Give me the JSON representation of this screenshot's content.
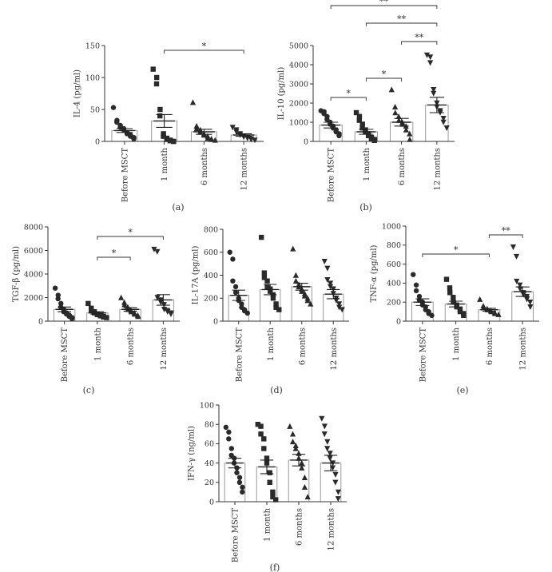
{
  "chart_data": [
    {
      "type": "scatter",
      "panel_label": "(a)",
      "categories": [
        "Before MSCT",
        "1 month",
        "6 months",
        "12 months"
      ],
      "ylabel": "IL-4 (pg/ml)",
      "ylim": [
        0,
        150
      ],
      "yticks": [
        0,
        50,
        100,
        150
      ],
      "bar_means": [
        17,
        32,
        15,
        10
      ],
      "sem": [
        3,
        10,
        4,
        2
      ],
      "points": [
        [
          53,
          33,
          30,
          25,
          22,
          20,
          18,
          14,
          12,
          10,
          8,
          6,
          4
        ],
        [
          113,
          100,
          90,
          50,
          40,
          12,
          8,
          5,
          3,
          2,
          1,
          0,
          0
        ],
        [
          61,
          24,
          20,
          18,
          15,
          12,
          10,
          8,
          5,
          4,
          3,
          2
        ],
        [
          22,
          18,
          15,
          12,
          10,
          8,
          7,
          6,
          5,
          4,
          3,
          2
        ]
      ],
      "markers": [
        "circle",
        "square",
        "triangle",
        "triangle-down"
      ],
      "significance": [
        {
          "from": 1,
          "to": 3,
          "label": "*"
        }
      ]
    },
    {
      "type": "scatter",
      "panel_label": "(b)",
      "categories": [
        "Before MSCT",
        "1 month",
        "6 months",
        "12 months"
      ],
      "ylabel": "IL-10 (pg/ml)",
      "ylim": [
        0,
        5000
      ],
      "yticks": [
        0,
        1000,
        2000,
        3000,
        4000,
        5000
      ],
      "bar_means": [
        850,
        500,
        1000,
        1900
      ],
      "sem": [
        150,
        130,
        200,
        400
      ],
      "points": [
        [
          1600,
          1550,
          1450,
          1300,
          1150,
          1000,
          900,
          800,
          700,
          600,
          500,
          400,
          300
        ],
        [
          1500,
          1300,
          1100,
          900,
          700,
          600,
          500,
          400,
          300,
          200,
          150,
          100,
          50
        ],
        [
          2700,
          1800,
          1500,
          1300,
          1100,
          1000,
          900,
          800,
          600,
          400,
          100
        ],
        [
          4500,
          4400,
          4100,
          2700,
          2500,
          2000,
          1800,
          1600,
          1500,
          1200,
          1000,
          700
        ]
      ],
      "markers": [
        "circle",
        "square",
        "triangle",
        "triangle-down"
      ],
      "significance": [
        {
          "from": 0,
          "to": 1,
          "label": "*"
        },
        {
          "from": 1,
          "to": 2,
          "label": "*"
        },
        {
          "from": 2,
          "to": 3,
          "label": "**"
        },
        {
          "from": 1,
          "to": 3,
          "label": "**"
        },
        {
          "from": 0,
          "to": 3,
          "label": "**"
        }
      ]
    },
    {
      "type": "scatter",
      "panel_label": "(c)",
      "categories": [
        "Before MSCT",
        "1 month",
        "6 months",
        "12 months"
      ],
      "ylabel": "TGF-β (pg/ml)",
      "ylim": [
        0,
        8000
      ],
      "yticks": [
        0,
        2000,
        4000,
        6000,
        8000
      ],
      "bar_means": [
        1000,
        700,
        1000,
        1800
      ],
      "sem": [
        200,
        100,
        150,
        450
      ],
      "points": [
        [
          2800,
          2200,
          1900,
          1500,
          1200,
          1000,
          800,
          700,
          600,
          500,
          400,
          300,
          200
        ],
        [
          1500,
          1100,
          900,
          800,
          700,
          600,
          550,
          500,
          450,
          400,
          350,
          300
        ],
        [
          2000,
          1600,
          1400,
          1200,
          1000,
          900,
          800,
          700,
          600,
          500,
          400
        ],
        [
          6100,
          5900,
          2000,
          1800,
          1600,
          1400,
          1000,
          900,
          800,
          700,
          600
        ]
      ],
      "markers": [
        "circle",
        "square",
        "triangle",
        "triangle-down"
      ],
      "significance": [
        {
          "from": 1,
          "to": 2,
          "label": "*"
        },
        {
          "from": 1,
          "to": 3,
          "label": "*"
        }
      ]
    },
    {
      "type": "scatter",
      "panel_label": "(d)",
      "categories": [
        "Before MSCT",
        "1 month",
        "6 months",
        "12 months"
      ],
      "ylabel": "IL-17A (pg/ml)",
      "ylim": [
        0,
        800
      ],
      "yticks": [
        0,
        200,
        400,
        600,
        800
      ],
      "bar_means": [
        225,
        275,
        300,
        235
      ],
      "sem": [
        45,
        45,
        30,
        40
      ],
      "points": [
        [
          600,
          540,
          350,
          300,
          250,
          200,
          180,
          150,
          120,
          100,
          90,
          70
        ],
        [
          730,
          420,
          380,
          350,
          300,
          280,
          260,
          230,
          200,
          150,
          120,
          100
        ],
        [
          630,
          400,
          350,
          320,
          300,
          280,
          260,
          240,
          220,
          200,
          180,
          150
        ],
        [
          520,
          460,
          360,
          330,
          300,
          280,
          240,
          200,
          180,
          150,
          120,
          100
        ]
      ],
      "markers": [
        "circle",
        "square",
        "triangle",
        "triangle-down"
      ],
      "significance": []
    },
    {
      "type": "scatter",
      "panel_label": "(e)",
      "categories": [
        "Before MSCT",
        "1 month",
        "6 months",
        "12 months"
      ],
      "ylabel": "TNF-α (pg/ml)",
      "ylim": [
        0,
        1000
      ],
      "yticks": [
        0,
        200,
        400,
        600,
        800,
        1000
      ],
      "bar_means": [
        200,
        180,
        120,
        310
      ],
      "sem": [
        35,
        30,
        15,
        50
      ],
      "points": [
        [
          490,
          380,
          320,
          260,
          220,
          200,
          170,
          150,
          120,
          100,
          80,
          60
        ],
        [
          440,
          350,
          300,
          250,
          200,
          170,
          150,
          120,
          100,
          80,
          60
        ],
        [
          230,
          160,
          140,
          130,
          120,
          110,
          100,
          90,
          80,
          70
        ],
        [
          780,
          680,
          420,
          380,
          340,
          300,
          280,
          260,
          230,
          200,
          150
        ]
      ],
      "markers": [
        "circle",
        "square",
        "triangle",
        "triangle-down"
      ],
      "significance": [
        {
          "from": 0,
          "to": 2,
          "label": "*"
        },
        {
          "from": 2,
          "to": 3,
          "label": "**"
        }
      ]
    },
    {
      "type": "scatter",
      "panel_label": "(f)",
      "categories": [
        "Before MSCT",
        "1 month",
        "6 months",
        "12 months"
      ],
      "ylabel": "IFN-γ (ng/ml)",
      "ylim": [
        0,
        100
      ],
      "yticks": [
        0,
        20,
        40,
        60,
        80,
        100
      ],
      "bar_means": [
        40,
        36,
        43,
        40
      ],
      "sem": [
        5,
        7,
        6,
        8
      ],
      "points": [
        [
          77,
          72,
          65,
          55,
          48,
          45,
          40,
          35,
          30,
          25,
          20,
          15,
          10
        ],
        [
          80,
          78,
          70,
          65,
          55,
          45,
          40,
          30,
          20,
          10,
          5,
          2
        ],
        [
          78,
          70,
          62,
          58,
          55,
          50,
          45,
          40,
          35,
          25,
          15,
          5
        ],
        [
          86,
          78,
          70,
          62,
          55,
          50,
          45,
          40,
          35,
          28,
          20,
          10,
          3
        ]
      ],
      "markers": [
        "circle",
        "square",
        "triangle",
        "triangle-down"
      ],
      "significance": []
    }
  ]
}
